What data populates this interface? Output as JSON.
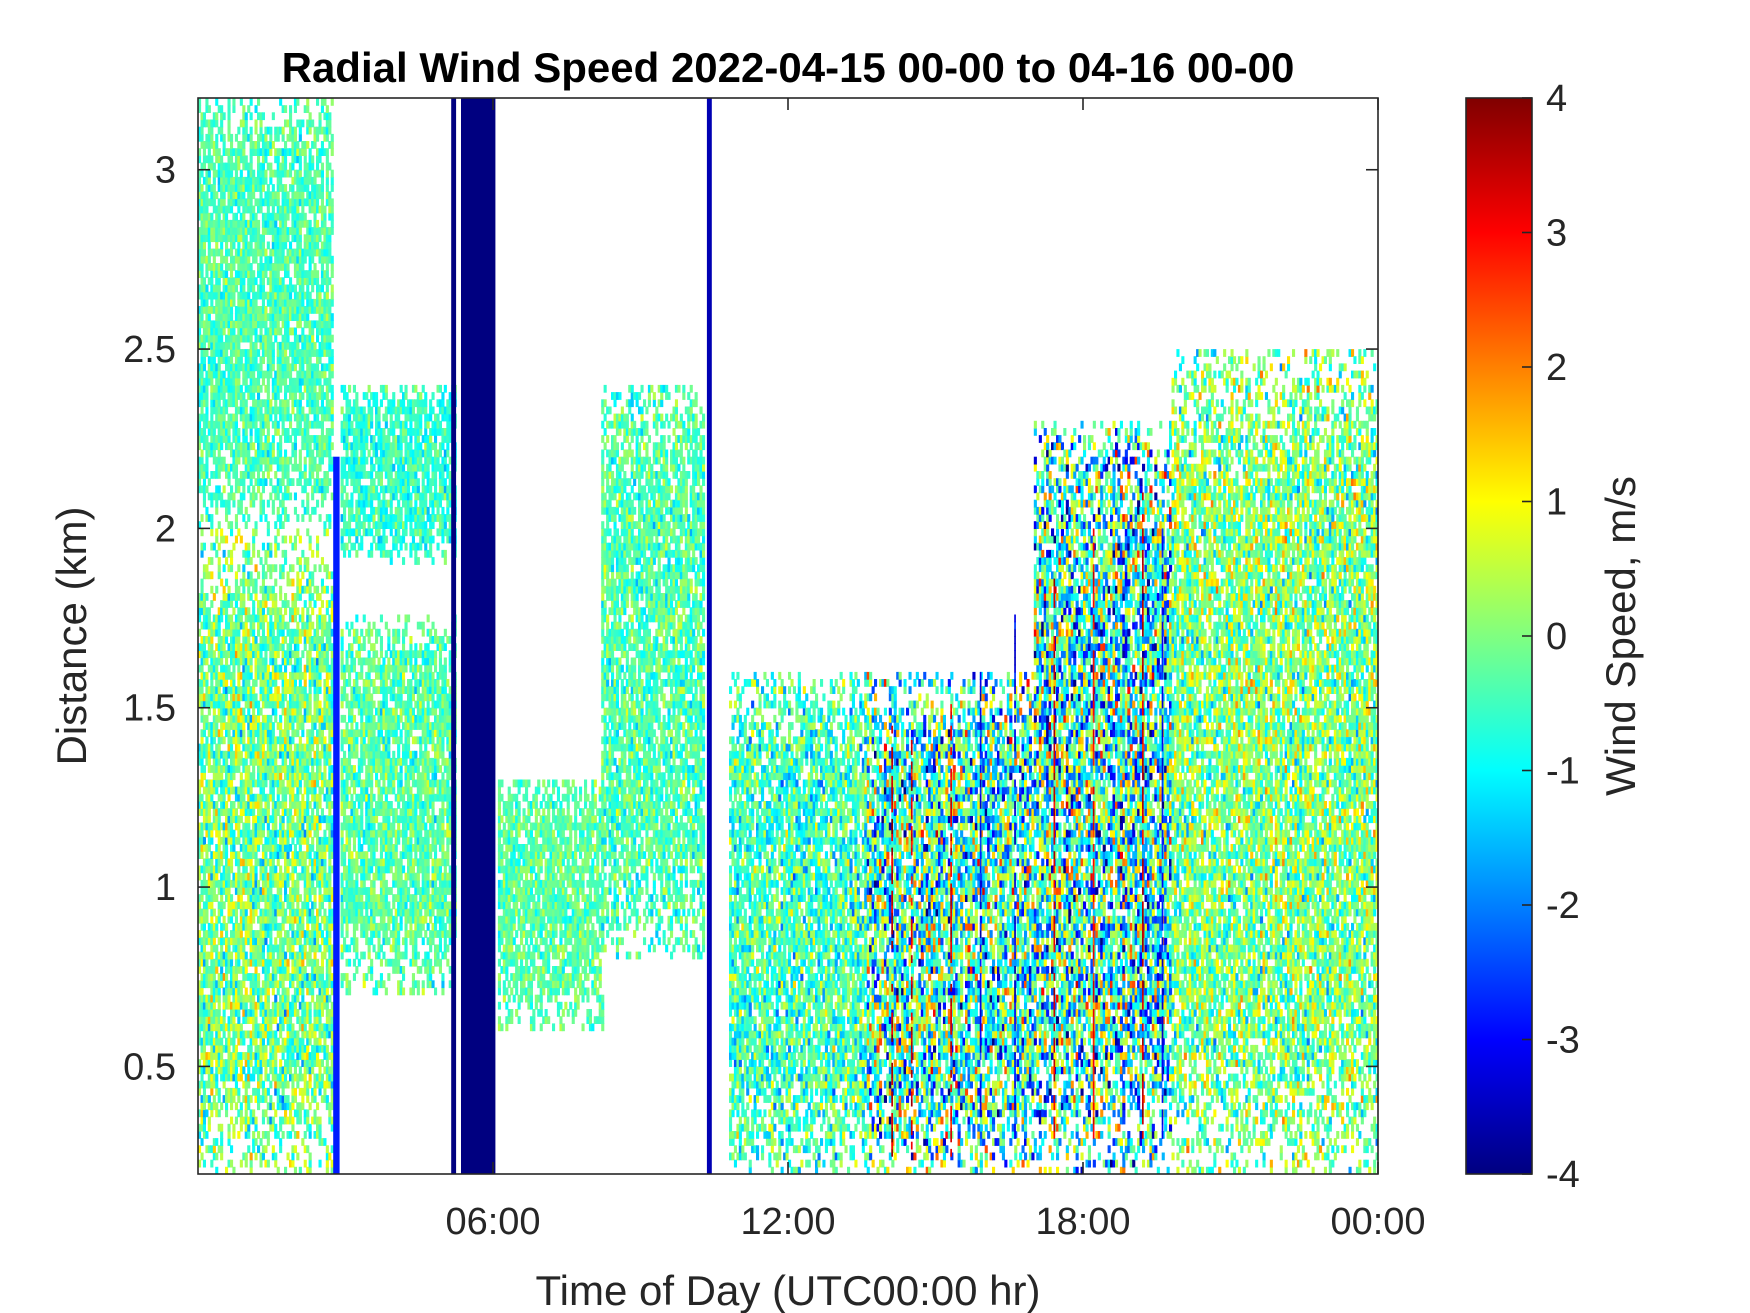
{
  "chart_data": {
    "type": "heatmap",
    "title": "Radial Wind Speed 2022-04-15 00-00 to 04-16 00-00",
    "xlabel": "Time of Day (UTC00:00 hr)",
    "ylabel": "Distance (km)",
    "xlim_hours": [
      0,
      24
    ],
    "ylim": [
      0.2,
      3.2
    ],
    "x_ticks": [
      {
        "value": 6,
        "label": "06:00"
      },
      {
        "value": 12,
        "label": "12:00"
      },
      {
        "value": 18,
        "label": "18:00"
      },
      {
        "value": 24,
        "label": "00:00"
      }
    ],
    "y_ticks": [
      {
        "value": 0.5,
        "label": "0.5"
      },
      {
        "value": 1,
        "label": "1"
      },
      {
        "value": 1.5,
        "label": "1.5"
      },
      {
        "value": 2,
        "label": "2"
      },
      {
        "value": 2.5,
        "label": "2.5"
      },
      {
        "value": 3,
        "label": "3"
      }
    ],
    "colorbar": {
      "label": "Wind Speed, m/s",
      "colormap": "jet",
      "clim": [
        -4,
        4
      ],
      "ticks": [
        {
          "value": 4,
          "label": "4"
        },
        {
          "value": 3,
          "label": "3"
        },
        {
          "value": 2,
          "label": "2"
        },
        {
          "value": 1,
          "label": "1"
        },
        {
          "value": 0,
          "label": "0"
        },
        {
          "value": -1,
          "label": "-1"
        },
        {
          "value": -2,
          "label": "-2"
        },
        {
          "value": -3,
          "label": "-3"
        },
        {
          "value": -4,
          "label": "-4"
        }
      ]
    },
    "regions": [
      {
        "t_start": 0.0,
        "t_end": 2.7,
        "d_min": 0.2,
        "d_max": 2.0,
        "mean": -0.1,
        "spread": 0.9
      },
      {
        "t_start": 0.0,
        "t_end": 2.7,
        "d_min": 2.0,
        "d_max": 3.2,
        "mean": -0.4,
        "spread": 0.5
      },
      {
        "t_start": 2.9,
        "t_end": 5.2,
        "d_min": 0.7,
        "d_max": 1.75,
        "mean": -0.3,
        "spread": 0.6
      },
      {
        "t_start": 2.9,
        "t_end": 5.2,
        "d_min": 1.9,
        "d_max": 2.4,
        "mean": -0.6,
        "spread": 0.5
      },
      {
        "t_start": 6.1,
        "t_end": 8.2,
        "d_min": 0.6,
        "d_max": 1.3,
        "mean": -0.3,
        "spread": 0.5
      },
      {
        "t_start": 8.2,
        "t_end": 10.3,
        "d_min": 0.8,
        "d_max": 2.4,
        "mean": -0.4,
        "spread": 0.6
      },
      {
        "t_start": 10.8,
        "t_end": 13.6,
        "d_min": 0.2,
        "d_max": 1.6,
        "mean": -0.5,
        "spread": 0.9
      },
      {
        "t_start": 13.6,
        "t_end": 17.0,
        "d_min": 0.2,
        "d_max": 1.6,
        "mean": -0.6,
        "spread": 1.8
      },
      {
        "t_start": 17.0,
        "t_end": 19.8,
        "d_min": 0.2,
        "d_max": 2.3,
        "mean": -0.7,
        "spread": 1.9
      },
      {
        "t_start": 19.8,
        "t_end": 24.0,
        "d_min": 0.2,
        "d_max": 2.5,
        "mean": 0.0,
        "spread": 1.0
      }
    ],
    "bands": [
      {
        "t_start": 2.75,
        "t_end": 2.88,
        "d_min": 0.2,
        "d_max": 2.2,
        "value": -2.8
      },
      {
        "t_start": 5.15,
        "t_end": 5.25,
        "d_min": 0.2,
        "d_max": 3.2,
        "value": -4.0
      },
      {
        "t_start": 5.35,
        "t_end": 6.05,
        "d_min": 0.2,
        "d_max": 3.2,
        "value": -4.0
      },
      {
        "t_start": 10.35,
        "t_end": 10.45,
        "d_min": 0.2,
        "d_max": 3.2,
        "value": -3.6
      }
    ],
    "streaks": [
      {
        "t": 14.1,
        "d_min": 0.25,
        "d_max": 1.45,
        "value": 3.5
      },
      {
        "t": 14.5,
        "d_min": 0.25,
        "d_max": 1.4,
        "value": 3.3
      },
      {
        "t": 15.3,
        "d_min": 0.25,
        "d_max": 1.5,
        "value": 3.2
      },
      {
        "t": 15.9,
        "d_min": 0.3,
        "d_max": 1.6,
        "value": -3.0
      },
      {
        "t": 16.6,
        "d_min": 0.3,
        "d_max": 1.8,
        "value": -3.2
      },
      {
        "t": 17.4,
        "d_min": 0.3,
        "d_max": 1.85,
        "value": 3.3
      },
      {
        "t": 18.2,
        "d_min": 0.3,
        "d_max": 2.0,
        "value": 3.0
      },
      {
        "t": 19.2,
        "d_min": 0.3,
        "d_max": 2.1,
        "value": 3.4
      },
      {
        "t": 19.6,
        "d_min": 0.3,
        "d_max": 2.0,
        "value": -3.0
      }
    ]
  }
}
